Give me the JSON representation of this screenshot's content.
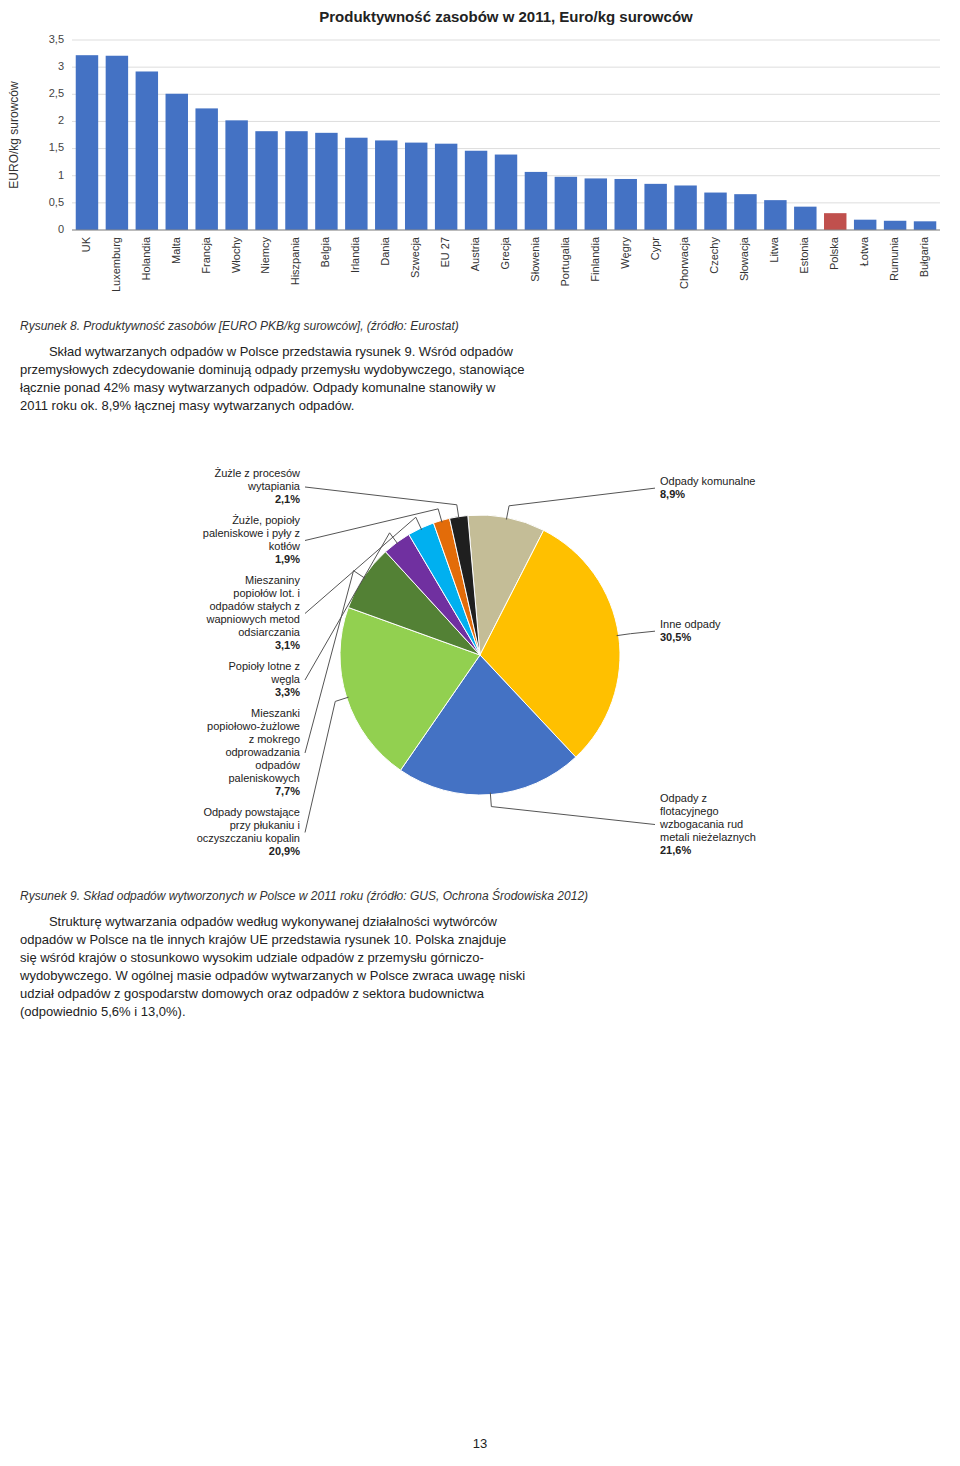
{
  "chart_data": [
    {
      "type": "bar",
      "title": "Produktywność zasobów w 2011, Euro/kg surowców",
      "ylabel": "EURO/kg surowców",
      "categories": [
        "UK",
        "Luxemburg",
        "Holandia",
        "Malta",
        "Francja",
        "Włochy",
        "Niemcy",
        "Hiszpania",
        "Belgia",
        "Irlandia",
        "Dania",
        "Szwecja",
        "EU 27",
        "Austria",
        "Grecja",
        "Słowenia",
        "Portugalia",
        "Finlandia",
        "Węgry",
        "Cypr",
        "Chorwacja",
        "Czechy",
        "Słowacja",
        "Litwa",
        "Estonia",
        "Polska",
        "Łotwa",
        "Rumunia",
        "Bułgaria"
      ],
      "values": [
        3.22,
        3.21,
        2.92,
        2.51,
        2.24,
        2.02,
        1.82,
        1.82,
        1.79,
        1.7,
        1.65,
        1.61,
        1.59,
        1.46,
        1.39,
        1.07,
        0.98,
        0.95,
        0.94,
        0.85,
        0.82,
        0.69,
        0.66,
        0.55,
        0.43,
        0.31,
        0.19,
        0.17,
        0.16
      ],
      "colors": [
        "#4472C4",
        "#4472C4",
        "#4472C4",
        "#4472C4",
        "#4472C4",
        "#4472C4",
        "#4472C4",
        "#4472C4",
        "#4472C4",
        "#4472C4",
        "#4472C4",
        "#4472C4",
        "#4472C4",
        "#4472C4",
        "#4472C4",
        "#4472C4",
        "#4472C4",
        "#4472C4",
        "#4472C4",
        "#4472C4",
        "#4472C4",
        "#4472C4",
        "#4472C4",
        "#4472C4",
        "#4472C4",
        "#C0504D",
        "#4472C4",
        "#4472C4",
        "#4472C4"
      ],
      "ylim": [
        0,
        3.5
      ],
      "yticks": [
        0,
        {
          "value": 0.5,
          "label": "0,5"
        },
        1,
        {
          "value": 1.5,
          "label": "1,5"
        },
        2,
        {
          "value": 2.5,
          "label": "2,5"
        },
        3,
        {
          "value": 3.5,
          "label": "3,5"
        }
      ],
      "grid": true,
      "caption": "Rysunek 8. Produktywność zasobów [EURO PKB/kg surowców], (źródło: Eurostat)"
    },
    {
      "type": "pie",
      "categories": [
        "Odpady komunalne",
        "Inne odpady",
        "Odpady z\nflotacyjnego\nwzbogacania rud\nmetali nieżelaznych",
        "Odpady powstające\nprzy płukaniu i\noczyszczaniu kopalin",
        "Mieszanki\npopiołowo-żużlowe\nz mokrego\nodprowadzania\nodpadów\npaleniskowych",
        "Popioły lotne z\nwęgla",
        "Mieszaniny\npopiołów lot. i\nodpadów stałych z\nwapniowych metod\nodsiarczania",
        "Żużle, popioły\npaleniskowe i pyły z\nkotłów",
        "Żużle z procesów\nwytapiania"
      ],
      "values": [
        8.9,
        30.5,
        21.6,
        20.9,
        7.7,
        3.3,
        3.1,
        1.9,
        2.1
      ],
      "value_labels": [
        "8,9%",
        "30,5%",
        "21,6%",
        "20,9%",
        "7,7%",
        "3,3%",
        "3,1%",
        "1,9%",
        "2,1%"
      ],
      "colors": [
        "#C4BD97",
        "#FFC000",
        "#4472C4",
        "#92D050",
        "#538135",
        "#7030A0",
        "#00B0F0",
        "#E36C09",
        "#1F1F1F"
      ],
      "data_labels": true,
      "caption": "Rysunek 9. Skład odpadów wytworzonych w Polsce w 2011 roku (źródło: GUS, Ochrona Środowiska 2012)"
    }
  ],
  "paragraphs": [
    [
      "        Skład wytwarzanych odpadów w Polsce przedstawia rysunek 9. Wśród odpadów",
      "przemysłowych zdecydowanie dominują odpady przemysłu wydobywczego, stanowiące",
      "łącznie ponad 42% masy wytwarzanych odpadów. Odpady komunalne stanowiły w",
      "2011 roku ok. 8,9% łącznej masy wytwarzanych odpadów."
    ],
    [
      "        Strukturę wytwarzania odpadów według wykonywanej działalności wytwórców",
      "odpadów w Polsce na tle innych krajów UE przedstawia rysunek 10. Polska znajduje",
      "się wśród krajów o stosunkowo wysokim udziale odpadów z przemysłu górniczo-",
      "wydobywczego. W ogólnej masie odpadów wytwarzanych w Polsce zwraca uwagę niski",
      "udział odpadów z gospodarstw domowych oraz odpadów z sektora budownictwa",
      "(odpowiednio 5,6% i 13,0%)."
    ]
  ],
  "page_number": "13"
}
